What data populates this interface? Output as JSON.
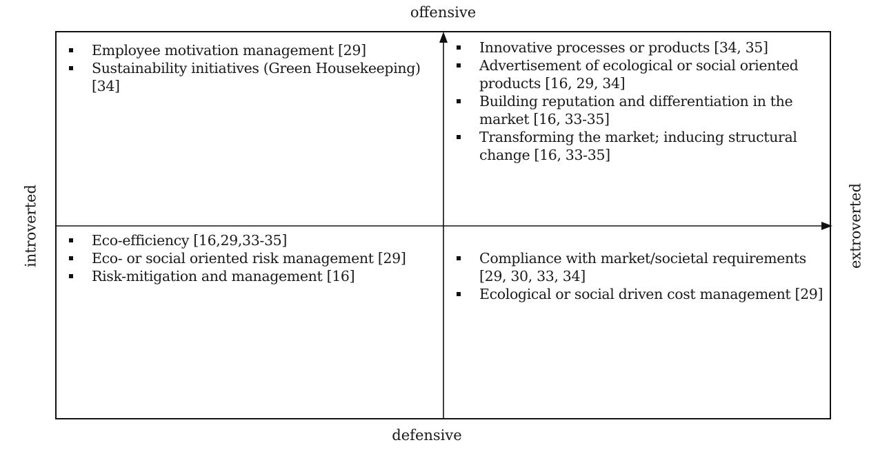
{
  "axes": {
    "top": "offensive",
    "bottom": "defensive",
    "left": "introverted",
    "right": "extroverted"
  },
  "quadrants": {
    "top_left": {
      "items": [
        "Employee motivation management [29]",
        "Sustainability initiatives (Green Housekeeping) [34]"
      ]
    },
    "top_right": {
      "items": [
        "Innovative processes or products [34, 35]",
        "Advertisement of ecological or social oriented products [16, 29, 34]",
        "Building reputation and differentiation in the market [16, 33-35]",
        "Transforming the market; inducing structural change [16, 33-35]"
      ]
    },
    "bottom_left": {
      "items": [
        "Eco-efficiency [16,29,33-35]",
        "Eco- or social oriented risk management [29]",
        "Risk-mitigation and management [16]"
      ]
    },
    "bottom_right": {
      "items": [
        "Compliance with market/societal requirements [29, 30, 33, 34]",
        "Ecological or social driven cost management [29]"
      ]
    }
  },
  "colors": {
    "line": "#111111",
    "text": "#1a1a1a",
    "background": "#ffffff"
  }
}
